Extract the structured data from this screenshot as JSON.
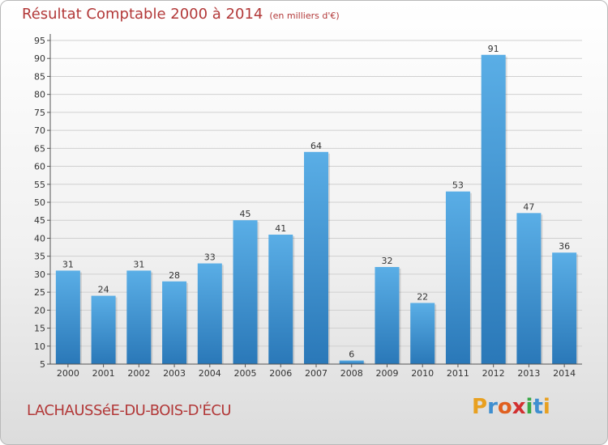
{
  "header": {
    "title": "Résultat Comptable 2000 à 2014",
    "subtitle": "(en milliers d'€)"
  },
  "footer": {
    "place": "LACHAUSSéE-DU-BOIS-D'ÉCU",
    "logo": "Proxiti"
  },
  "colors": {
    "bar_top": "#5aaee6",
    "bar_bottom": "#2a78b8",
    "title": "#b23838"
  },
  "chart_data": {
    "type": "bar",
    "categories": [
      "2000",
      "2001",
      "2002",
      "2003",
      "2004",
      "2005",
      "2006",
      "2007",
      "2008",
      "2009",
      "2010",
      "2011",
      "2012",
      "2013",
      "2014"
    ],
    "values": [
      31,
      24,
      31,
      28,
      33,
      45,
      41,
      64,
      6,
      32,
      22,
      53,
      91,
      47,
      36
    ],
    "ylim": [
      5,
      95
    ],
    "yticks": [
      5,
      10,
      15,
      20,
      25,
      30,
      35,
      40,
      45,
      50,
      55,
      60,
      65,
      70,
      75,
      80,
      85,
      90,
      95
    ],
    "grid": true,
    "xlabel": "",
    "ylabel": ""
  }
}
